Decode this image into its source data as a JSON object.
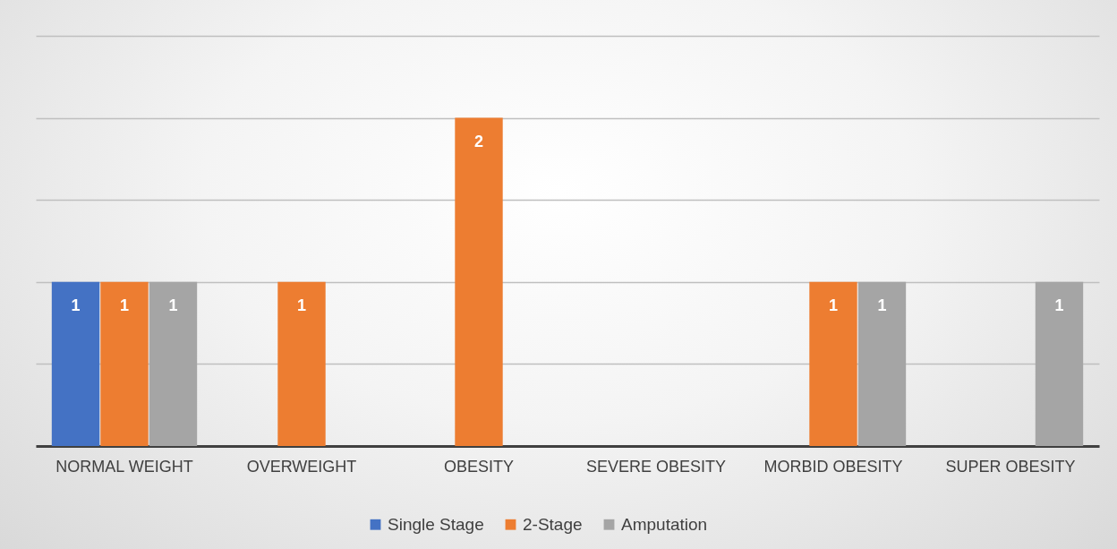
{
  "chart_data": {
    "type": "bar",
    "categories": [
      "NORMAL WEIGHT",
      "OVERWEIGHT",
      "OBESITY",
      "SEVERE OBESITY",
      "MORBID OBESITY",
      "SUPER OBESITY"
    ],
    "series": [
      {
        "name": "Single Stage",
        "color": "#4472c4",
        "values": [
          1,
          null,
          null,
          null,
          null,
          null
        ]
      },
      {
        "name": "2-Stage",
        "color": "#ed7d31",
        "values": [
          1,
          1,
          2,
          null,
          1,
          null
        ]
      },
      {
        "name": "Amputation",
        "color": "#a5a5a5",
        "values": [
          1,
          null,
          null,
          null,
          1,
          1
        ]
      }
    ],
    "ylim": [
      0,
      2.5
    ],
    "yticks": [
      {
        "value": 0,
        "label": null
      },
      {
        "value": 0.5,
        "label": null
      },
      {
        "value": 1,
        "label": null
      },
      {
        "value": 1.5,
        "label": null
      },
      {
        "value": 2,
        "label": null
      },
      {
        "value": 2.5,
        "label": null
      }
    ],
    "grid": "y",
    "tick_labels": "x",
    "legend": "bottom",
    "data_labels": true
  }
}
